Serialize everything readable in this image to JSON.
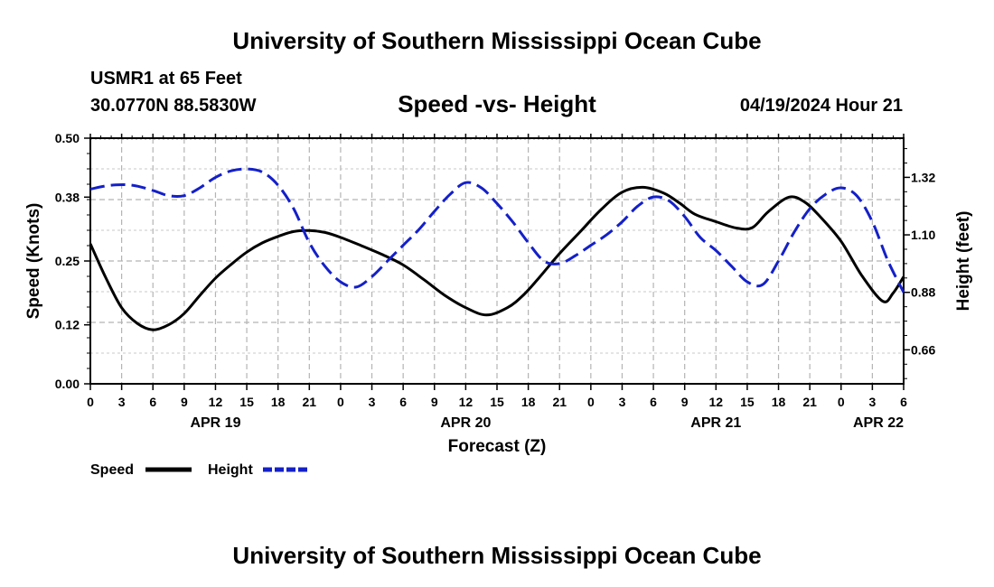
{
  "header": {
    "title": "University of Southern Mississippi Ocean Cube",
    "station": "USMR1 at 65 Feet",
    "coords": "30.0770N  88.5830W",
    "datetime": "04/19/2024 Hour 21",
    "footer_title": "University of Southern Mississippi Ocean Cube"
  },
  "chart_data": {
    "type": "line",
    "title": "Speed -vs- Height",
    "xlabel": "Forecast (Z)",
    "ylabel": "Speed (Knots)",
    "y2label": "Height (feet)",
    "x_hours": [
      0,
      78
    ],
    "ylim": [
      0,
      0.5
    ],
    "y2lim": [
      0.53,
      1.47
    ],
    "y_ticks": [
      "0.00",
      "0.12",
      "0.25",
      "0.38",
      "0.50"
    ],
    "y2_ticks": [
      "0.66",
      "0.88",
      "1.10",
      "1.32"
    ],
    "x_tick_labels": [
      "0",
      "3",
      "6",
      "9",
      "12",
      "15",
      "18",
      "21",
      "0",
      "3",
      "6",
      "9",
      "12",
      "15",
      "18",
      "21",
      "0",
      "3",
      "6",
      "9",
      "12",
      "15",
      "18",
      "21",
      "0",
      "3",
      "6"
    ],
    "date_labels": [
      {
        "label": "APR 19",
        "hour": 12
      },
      {
        "label": "APR 20",
        "hour": 36
      },
      {
        "label": "APR 21",
        "hour": 60
      },
      {
        "label": "APR 22",
        "hour": 78
      }
    ],
    "legend": [
      {
        "name": "Speed",
        "color": "#000000",
        "style": "solid"
      },
      {
        "name": "Height",
        "color": "#1420c8",
        "style": "dashed"
      }
    ],
    "series": [
      {
        "name": "Speed",
        "axis": "left",
        "color": "#000000",
        "x": [
          0,
          1.5,
          3,
          4.5,
          6,
          7.5,
          9,
          10.5,
          12,
          13.5,
          15,
          16.5,
          18,
          19.5,
          21,
          22.5,
          24,
          26,
          28,
          30,
          32,
          34,
          36,
          38,
          40,
          41.5,
          43,
          45,
          47,
          49,
          51,
          53,
          55,
          56.5,
          58,
          60,
          62,
          63.5,
          65,
          67,
          68.5,
          70,
          72,
          74,
          76,
          77,
          78
        ],
        "values": [
          0.285,
          0.215,
          0.155,
          0.123,
          0.11,
          0.12,
          0.143,
          0.18,
          0.215,
          0.243,
          0.268,
          0.287,
          0.3,
          0.31,
          0.312,
          0.308,
          0.298,
          0.281,
          0.263,
          0.242,
          0.212,
          0.18,
          0.155,
          0.14,
          0.155,
          0.18,
          0.215,
          0.265,
          0.31,
          0.355,
          0.39,
          0.4,
          0.388,
          0.368,
          0.345,
          0.33,
          0.317,
          0.318,
          0.35,
          0.38,
          0.37,
          0.34,
          0.29,
          0.22,
          0.168,
          0.185,
          0.218
        ]
      },
      {
        "name": "Height",
        "axis": "right",
        "color": "#1420c8",
        "x": [
          0,
          2,
          4,
          6,
          7.5,
          9,
          10.5,
          12,
          13.5,
          15,
          16.5,
          18,
          19.5,
          21,
          22.5,
          24,
          25.5,
          27,
          28.5,
          30,
          31.5,
          33,
          34.5,
          36,
          37.5,
          39,
          40.5,
          42,
          43.5,
          45,
          46.5,
          48,
          49.5,
          51,
          52.5,
          54,
          55.5,
          57,
          58.5,
          60,
          61.5,
          63,
          64.5,
          66,
          67.5,
          69,
          70.5,
          72,
          73.5,
          75,
          76.5,
          78
        ],
        "values": [
          1.275,
          1.29,
          1.29,
          1.27,
          1.25,
          1.25,
          1.28,
          1.32,
          1.345,
          1.352,
          1.34,
          1.29,
          1.2,
          1.07,
          0.98,
          0.92,
          0.9,
          0.94,
          1.0,
          1.06,
          1.12,
          1.19,
          1.255,
          1.3,
          1.28,
          1.22,
          1.15,
          1.07,
          1.0,
          0.99,
          1.02,
          1.06,
          1.1,
          1.15,
          1.21,
          1.245,
          1.23,
          1.17,
          1.09,
          1.04,
          0.98,
          0.92,
          0.91,
          1.0,
          1.11,
          1.2,
          1.255,
          1.28,
          1.25,
          1.15,
          1.0,
          0.88
        ]
      }
    ]
  }
}
